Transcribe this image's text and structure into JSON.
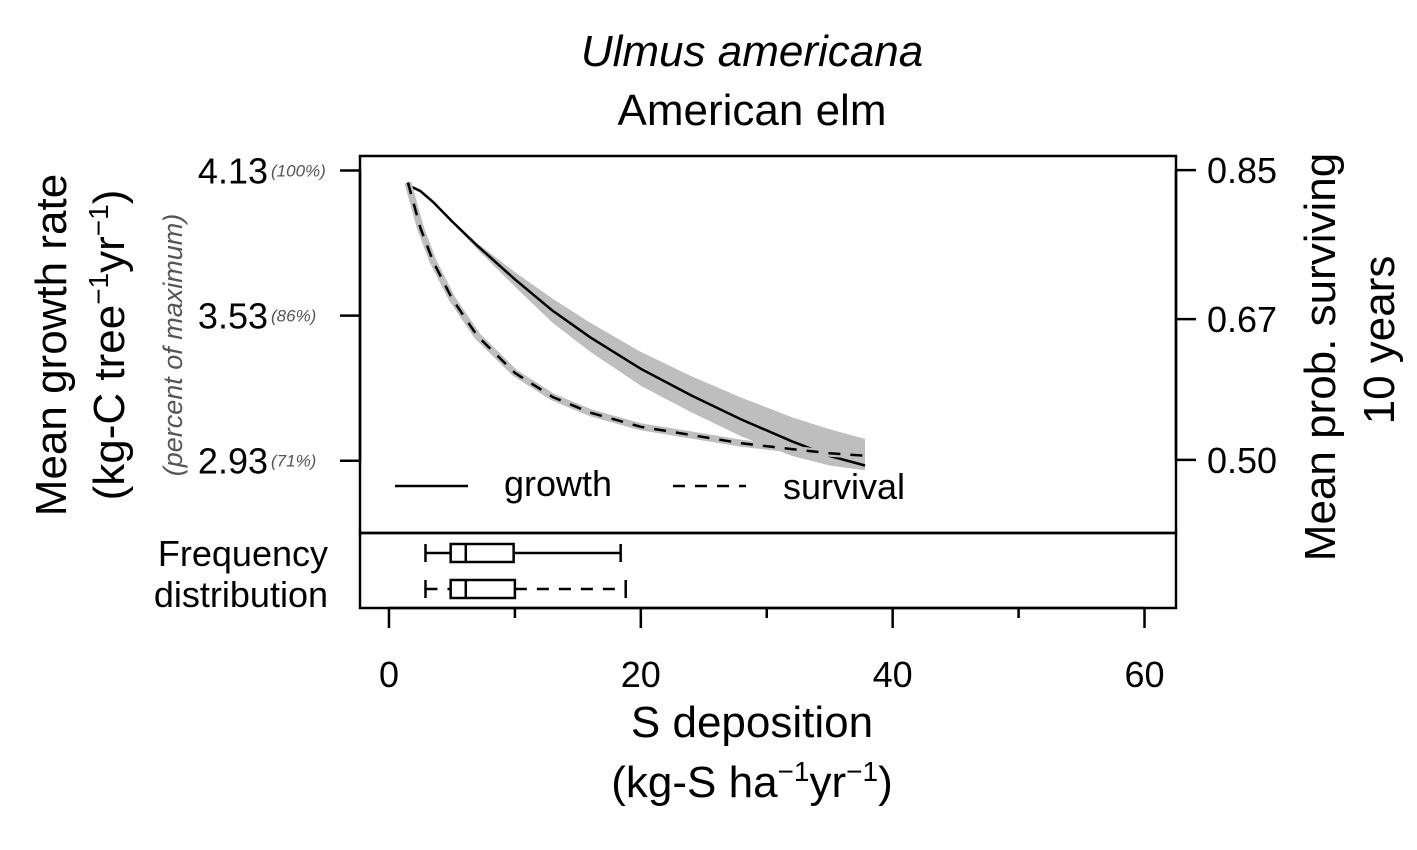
{
  "chart_data": {
    "type": "line",
    "title": "Ulmus americana",
    "subtitle": "American elm",
    "xlabel": "S deposition",
    "xunit": {
      "pre": "(kg-S ha",
      "sup1": "−1",
      "mid": "yr",
      "sup2": "−1",
      "post": ")"
    },
    "xlim": [
      -2.3,
      62.5
    ],
    "xticks": [
      0,
      20,
      40,
      60
    ],
    "xminor": [
      10,
      30,
      50
    ],
    "ylabel_left": "Mean growth rate",
    "yunit_left": {
      "pre": "(kg-C tree",
      "sup1": "−1",
      "mid": "yr",
      "sup2": "−1",
      "post": ")"
    },
    "ylabel_left_note": "(percent of maximum)",
    "ylim_left": [
      2.631,
      4.19
    ],
    "yticks_left": [
      {
        "value": 4.13,
        "label": "4.13",
        "pct": "(100%)"
      },
      {
        "value": 3.53,
        "label": "3.53",
        "pct": "(86%)"
      },
      {
        "value": 2.93,
        "label": "2.93",
        "pct": "(71%)"
      }
    ],
    "ylabel_right_1": "Mean prob. surviving",
    "ylabel_right_2": "10 years",
    "ylim_right": [
      0.4117,
      0.867
    ],
    "yticks_right": [
      {
        "value": 0.85,
        "label": "0.85"
      },
      {
        "value": 0.67,
        "label": "0.67"
      },
      {
        "value": 0.5,
        "label": "0.50"
      }
    ],
    "legend_position": "bottom-left",
    "series": [
      {
        "name": "growth",
        "axis": "left",
        "line_style": "solid",
        "x": [
          1.5,
          2.5,
          3.5,
          5,
          7,
          10,
          13,
          16,
          20,
          24,
          28,
          32,
          35,
          37.8
        ],
        "y": [
          4.07,
          4.045,
          4.0,
          3.92,
          3.82,
          3.68,
          3.55,
          3.44,
          3.31,
          3.2,
          3.1,
          3.01,
          2.95,
          2.91
        ],
        "band_upper": [
          4.07,
          4.045,
          4.0,
          3.925,
          3.83,
          3.71,
          3.6,
          3.5,
          3.38,
          3.28,
          3.19,
          3.11,
          3.06,
          3.02
        ],
        "band_lower": [
          4.07,
          4.045,
          3.995,
          3.915,
          3.805,
          3.65,
          3.5,
          3.38,
          3.24,
          3.13,
          3.03,
          2.95,
          2.91,
          2.89
        ]
      },
      {
        "name": "survival",
        "axis": "right",
        "line_style": "dashed",
        "x": [
          1.5,
          2.5,
          3.5,
          5,
          7,
          10,
          13,
          16,
          20,
          24,
          28,
          32,
          35,
          37.8
        ],
        "y": [
          0.835,
          0.78,
          0.74,
          0.695,
          0.65,
          0.605,
          0.576,
          0.557,
          0.54,
          0.53,
          0.52,
          0.513,
          0.508,
          0.505
        ]
      }
    ],
    "distribution": {
      "label_1": "Frequency",
      "label_2": "distribution",
      "boxes": [
        {
          "series": "growth",
          "line_style": "solid",
          "min": 2.9,
          "q1": 4.9,
          "median": 6.1,
          "q3": 9.9,
          "max": 18.4
        },
        {
          "series": "survival",
          "line_style": "dashed",
          "min": 2.9,
          "q1": 4.9,
          "median": 6.1,
          "q3": 10.0,
          "max": 18.8
        }
      ]
    },
    "colors": {
      "band": "#bebebe",
      "line": "#000000",
      "note": "#555555"
    }
  }
}
